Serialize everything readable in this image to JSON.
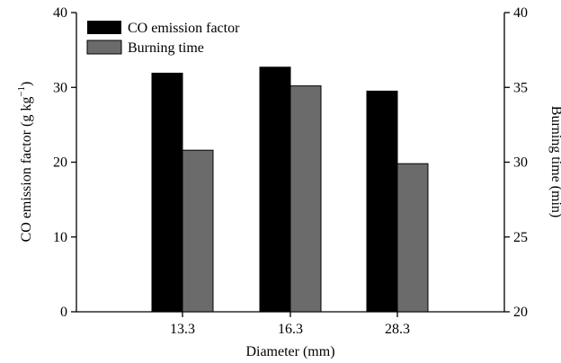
{
  "chart_data": {
    "type": "bar",
    "categories": [
      "13.3",
      "16.3",
      "28.3"
    ],
    "xlabel": "Diameter (mm)",
    "ylabel_left": "CO emission factor (g kg",
    "ylabel_left_sup": "−1",
    "ylabel_left_close": ")",
    "ylabel_right": "Burning time (min)",
    "ylim_left": [
      0,
      40
    ],
    "ylim_right": [
      20,
      40
    ],
    "yticks_left": [
      "0",
      "10",
      "20",
      "30",
      "40"
    ],
    "yticks_right": [
      "20",
      "25",
      "30",
      "35",
      "40"
    ],
    "grid": false,
    "legend_position": "top-left",
    "series": [
      {
        "name": "CO emission factor",
        "axis": "left",
        "color": "#000000",
        "values": [
          31.9,
          32.7,
          29.5
        ]
      },
      {
        "name": "Burning time",
        "axis": "right",
        "color": "#6b6b6b",
        "values": [
          30.8,
          35.1,
          29.9
        ]
      }
    ]
  }
}
